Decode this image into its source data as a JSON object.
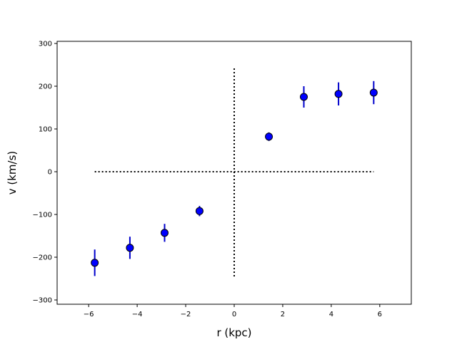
{
  "chart_data": {
    "type": "scatter",
    "xlabel": "r (kpc)",
    "ylabel": "v (km/s)",
    "xlim": [
      -7.3,
      7.3
    ],
    "ylim": [
      -310,
      305
    ],
    "x_ticks": [
      -6,
      -4,
      -2,
      0,
      2,
      4,
      6
    ],
    "x_tick_labels": [
      "−6",
      "−4",
      "−2",
      "0",
      "2",
      "4",
      "6"
    ],
    "y_ticks": [
      -300,
      -200,
      -100,
      0,
      100,
      200,
      300
    ],
    "y_tick_labels": [
      "−300",
      "−200",
      "−100",
      "0",
      "100",
      "200",
      "300"
    ],
    "grid": false,
    "series": [
      {
        "x": [
          -5.75,
          -4.3,
          -2.87,
          -1.43,
          1.43,
          2.87,
          4.3,
          5.75
        ],
        "y": [
          -213,
          -178,
          -143,
          -92,
          82,
          175,
          182,
          185
        ],
        "yerr": [
          31,
          26,
          21,
          12,
          10,
          25,
          27,
          27
        ],
        "marker_color": "#0000ff",
        "marker_edge_color": "#000000",
        "errorbar_color": "#0000cc"
      }
    ],
    "reference_lines": [
      {
        "orientation": "horizontal",
        "y": 0,
        "x_range": [
          -5.75,
          5.75
        ],
        "style": "dotted",
        "color": "#000000"
      },
      {
        "orientation": "vertical",
        "x": 0,
        "y_range": [
          -245,
          245
        ],
        "style": "dotted",
        "color": "#000000"
      }
    ]
  }
}
